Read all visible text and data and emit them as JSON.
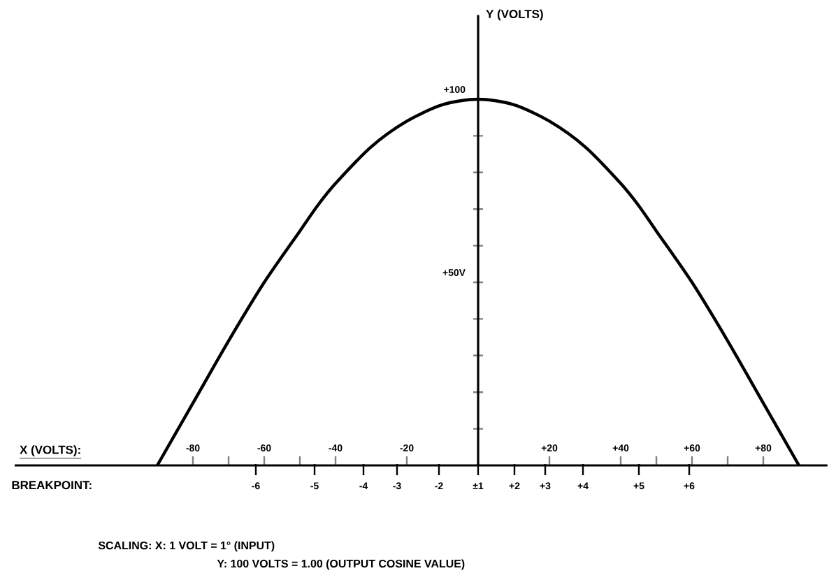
{
  "chart_data": {
    "type": "line",
    "xlabel": "X (VOLTS):",
    "ylabel": "Y (VOLTS)",
    "x": [
      -90,
      -80,
      -70,
      -60,
      -50,
      -45,
      -40,
      -30,
      -20,
      -10,
      0,
      10,
      20,
      30,
      40,
      45,
      50,
      60,
      70,
      80,
      90
    ],
    "series": [
      {
        "color": "#000000",
        "values": [
          0,
          17,
          34,
          50,
          64,
          71,
          77,
          87,
          94,
          98.5,
          100,
          98.5,
          94,
          87,
          77,
          71,
          64,
          50,
          34,
          17,
          0
        ]
      }
    ],
    "xlim": [
      -130,
      98
    ],
    "ylim": [
      0,
      123
    ],
    "xticks": [
      {
        "value": -80,
        "label": "-80"
      },
      {
        "value": -70,
        "label": null
      },
      {
        "value": -60,
        "label": "-60"
      },
      {
        "value": -50,
        "label": null
      },
      {
        "value": -40,
        "label": "-40"
      },
      {
        "value": -20,
        "label": "-20"
      },
      {
        "value": 20,
        "label": "+20"
      },
      {
        "value": 40,
        "label": "+40"
      },
      {
        "value": 50,
        "label": null
      },
      {
        "value": 60,
        "label": "+60"
      },
      {
        "value": 70,
        "label": null
      },
      {
        "value": 80,
        "label": "+80"
      }
    ],
    "yticks": [
      {
        "value": 10,
        "label": null
      },
      {
        "value": 20,
        "label": null
      },
      {
        "value": 30,
        "label": null
      },
      {
        "value": 40,
        "label": null
      },
      {
        "value": 50,
        "label": "+50V"
      },
      {
        "value": 60,
        "label": null
      },
      {
        "value": 70,
        "label": null
      },
      {
        "value": 80,
        "label": null
      },
      {
        "value": 90,
        "label": null
      },
      {
        "value": 100,
        "label": "+100"
      }
    ],
    "annotations": [
      "BREAKPOINT:",
      "SCALING:   X: 1 VOLT = 1° (INPUT)",
      "Y: 100 VOLTS = 1.00 (OUTPUT COSINE VALUE)",
      "-6",
      "-5",
      "-4",
      "-3",
      "-2",
      "±1",
      "+2",
      "+3",
      "+4",
      "+5",
      "+6"
    ]
  }
}
